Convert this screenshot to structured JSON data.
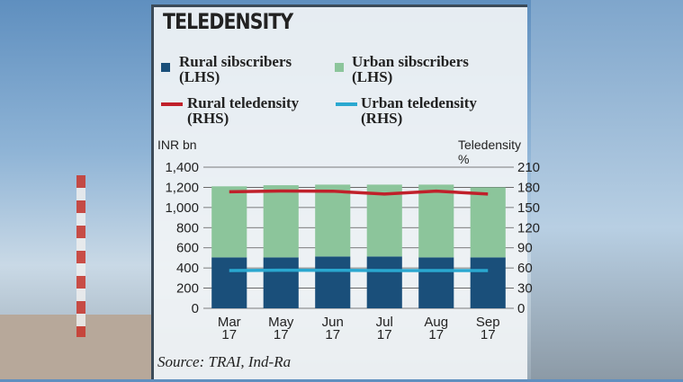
{
  "title": "TELEDENSITY",
  "legend": [
    {
      "label": "Rural sibscribers",
      "sub": "(LHS)",
      "color": "#1a4f7a",
      "kind": "bar"
    },
    {
      "label": "Urban sibscribers",
      "sub": "(LHS)",
      "color": "#8cc59b",
      "kind": "bar"
    },
    {
      "label": "Rural teledensity",
      "sub": "(RHS)",
      "color": "#c0202a",
      "kind": "line"
    },
    {
      "label": "Urban teledensity",
      "sub": "(RHS)",
      "color": "#2aa8d0",
      "kind": "line"
    }
  ],
  "source": "Source: TRAI, Ind-Ra",
  "chart_data": {
    "type": "bar",
    "title": "TELEDENSITY",
    "ylabel": "INR bn",
    "y2label": "Teledensity %",
    "ylim": [
      0,
      1400
    ],
    "y2lim": [
      0,
      210
    ],
    "yticks": [
      "0",
      "200",
      "400",
      "600",
      "800",
      "1,000",
      "1,200",
      "1,400"
    ],
    "y2ticks": [
      "0",
      "30",
      "60",
      "90",
      "120",
      "150",
      "180",
      "210"
    ],
    "categories": [
      [
        "Mar",
        "17"
      ],
      [
        "May",
        "17"
      ],
      [
        "Jun",
        "17"
      ],
      [
        "Jul",
        "17"
      ],
      [
        "Aug",
        "17"
      ],
      [
        "Sep",
        "17"
      ]
    ],
    "stacked_series": [
      {
        "name": "Rural sibscribers (LHS)",
        "color": "#1a4f7a",
        "values": [
          505,
          505,
          514,
          514,
          505,
          505
        ]
      },
      {
        "name": "Urban sibscribers (LHS)",
        "color": "#8cc59b",
        "values": [
          705,
          716,
          713,
          713,
          722,
          695
        ]
      }
    ],
    "line_series": [
      {
        "name": "Rural teledensity (RHS)",
        "color": "#c0202a",
        "axis": "right",
        "values": [
          173.4,
          174.5,
          174.3,
          170.0,
          174.3,
          170.0
        ]
      },
      {
        "name": "Urban teledensity (RHS)",
        "color": "#2aa8d0",
        "axis": "right",
        "values": [
          56.2,
          56.6,
          56.5,
          56.2,
          56.2,
          56.2
        ]
      }
    ],
    "grid": true
  }
}
